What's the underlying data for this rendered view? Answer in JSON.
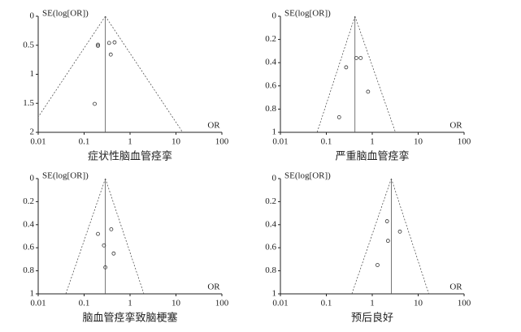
{
  "chart_data": [
    {
      "type": "funnel",
      "title": "症状性脑血管痉挛",
      "y_label": "SE(log[OR])",
      "x_label": "OR",
      "log_x": true,
      "invert_y": true,
      "xlim": [
        0.01,
        100
      ],
      "xticks": [
        0.01,
        0.1,
        1,
        10,
        100
      ],
      "ylim": [
        0,
        2
      ],
      "yticks": [
        0,
        0.5,
        1,
        1.5,
        2
      ],
      "pooled_or": 0.29,
      "funnel_bottom": [
        0.006,
        14
      ],
      "x": [
        0.2,
        0.2,
        0.35,
        0.46,
        0.38,
        0.17
      ],
      "values": [
        0.49,
        0.51,
        0.46,
        0.45,
        0.66,
        1.51
      ],
      "color": "#333333"
    },
    {
      "type": "funnel",
      "title": "严重脑血管痉挛",
      "y_label": "SE(log[OR])",
      "x_label": "OR",
      "log_x": true,
      "invert_y": true,
      "xlim": [
        0.01,
        100
      ],
      "xticks": [
        0.01,
        0.1,
        1,
        10,
        100
      ],
      "ylim": [
        0,
        1
      ],
      "yticks": [
        0,
        0.2,
        0.4,
        0.6,
        0.8,
        1
      ],
      "pooled_or": 0.42,
      "funnel_bottom": [
        0.063,
        3.2
      ],
      "x": [
        0.27,
        0.45,
        0.56,
        0.81,
        0.19
      ],
      "values": [
        0.44,
        0.36,
        0.36,
        0.65,
        0.87
      ],
      "color": "#333333"
    },
    {
      "type": "funnel",
      "title": "脑血管痉挛致脑梗塞",
      "y_label": "SE(log[OR])",
      "x_label": "OR",
      "log_x": true,
      "invert_y": true,
      "xlim": [
        0.01,
        100
      ],
      "xticks": [
        0.01,
        0.1,
        1,
        10,
        100
      ],
      "ylim": [
        0,
        1
      ],
      "yticks": [
        0,
        0.2,
        0.4,
        0.6,
        0.8,
        1
      ],
      "pooled_or": 0.29,
      "funnel_bottom": [
        0.04,
        2
      ],
      "x": [
        0.2,
        0.27,
        0.39,
        0.44,
        0.29
      ],
      "values": [
        0.48,
        0.58,
        0.44,
        0.65,
        0.77
      ],
      "color": "#333333"
    },
    {
      "type": "funnel",
      "title": "预后良好",
      "y_label": "SE(log[OR])",
      "x_label": "OR",
      "log_x": true,
      "invert_y": true,
      "xlim": [
        0.01,
        100
      ],
      "xticks": [
        0.01,
        0.1,
        1,
        10,
        100
      ],
      "ylim": [
        0,
        1
      ],
      "yticks": [
        0,
        0.2,
        0.4,
        0.6,
        0.8,
        1
      ],
      "pooled_or": 2.6,
      "funnel_bottom": [
        0.36,
        17
      ],
      "x": [
        2.1,
        2.2,
        4,
        1.3
      ],
      "values": [
        0.37,
        0.54,
        0.46,
        0.75
      ],
      "color": "#333333"
    }
  ]
}
